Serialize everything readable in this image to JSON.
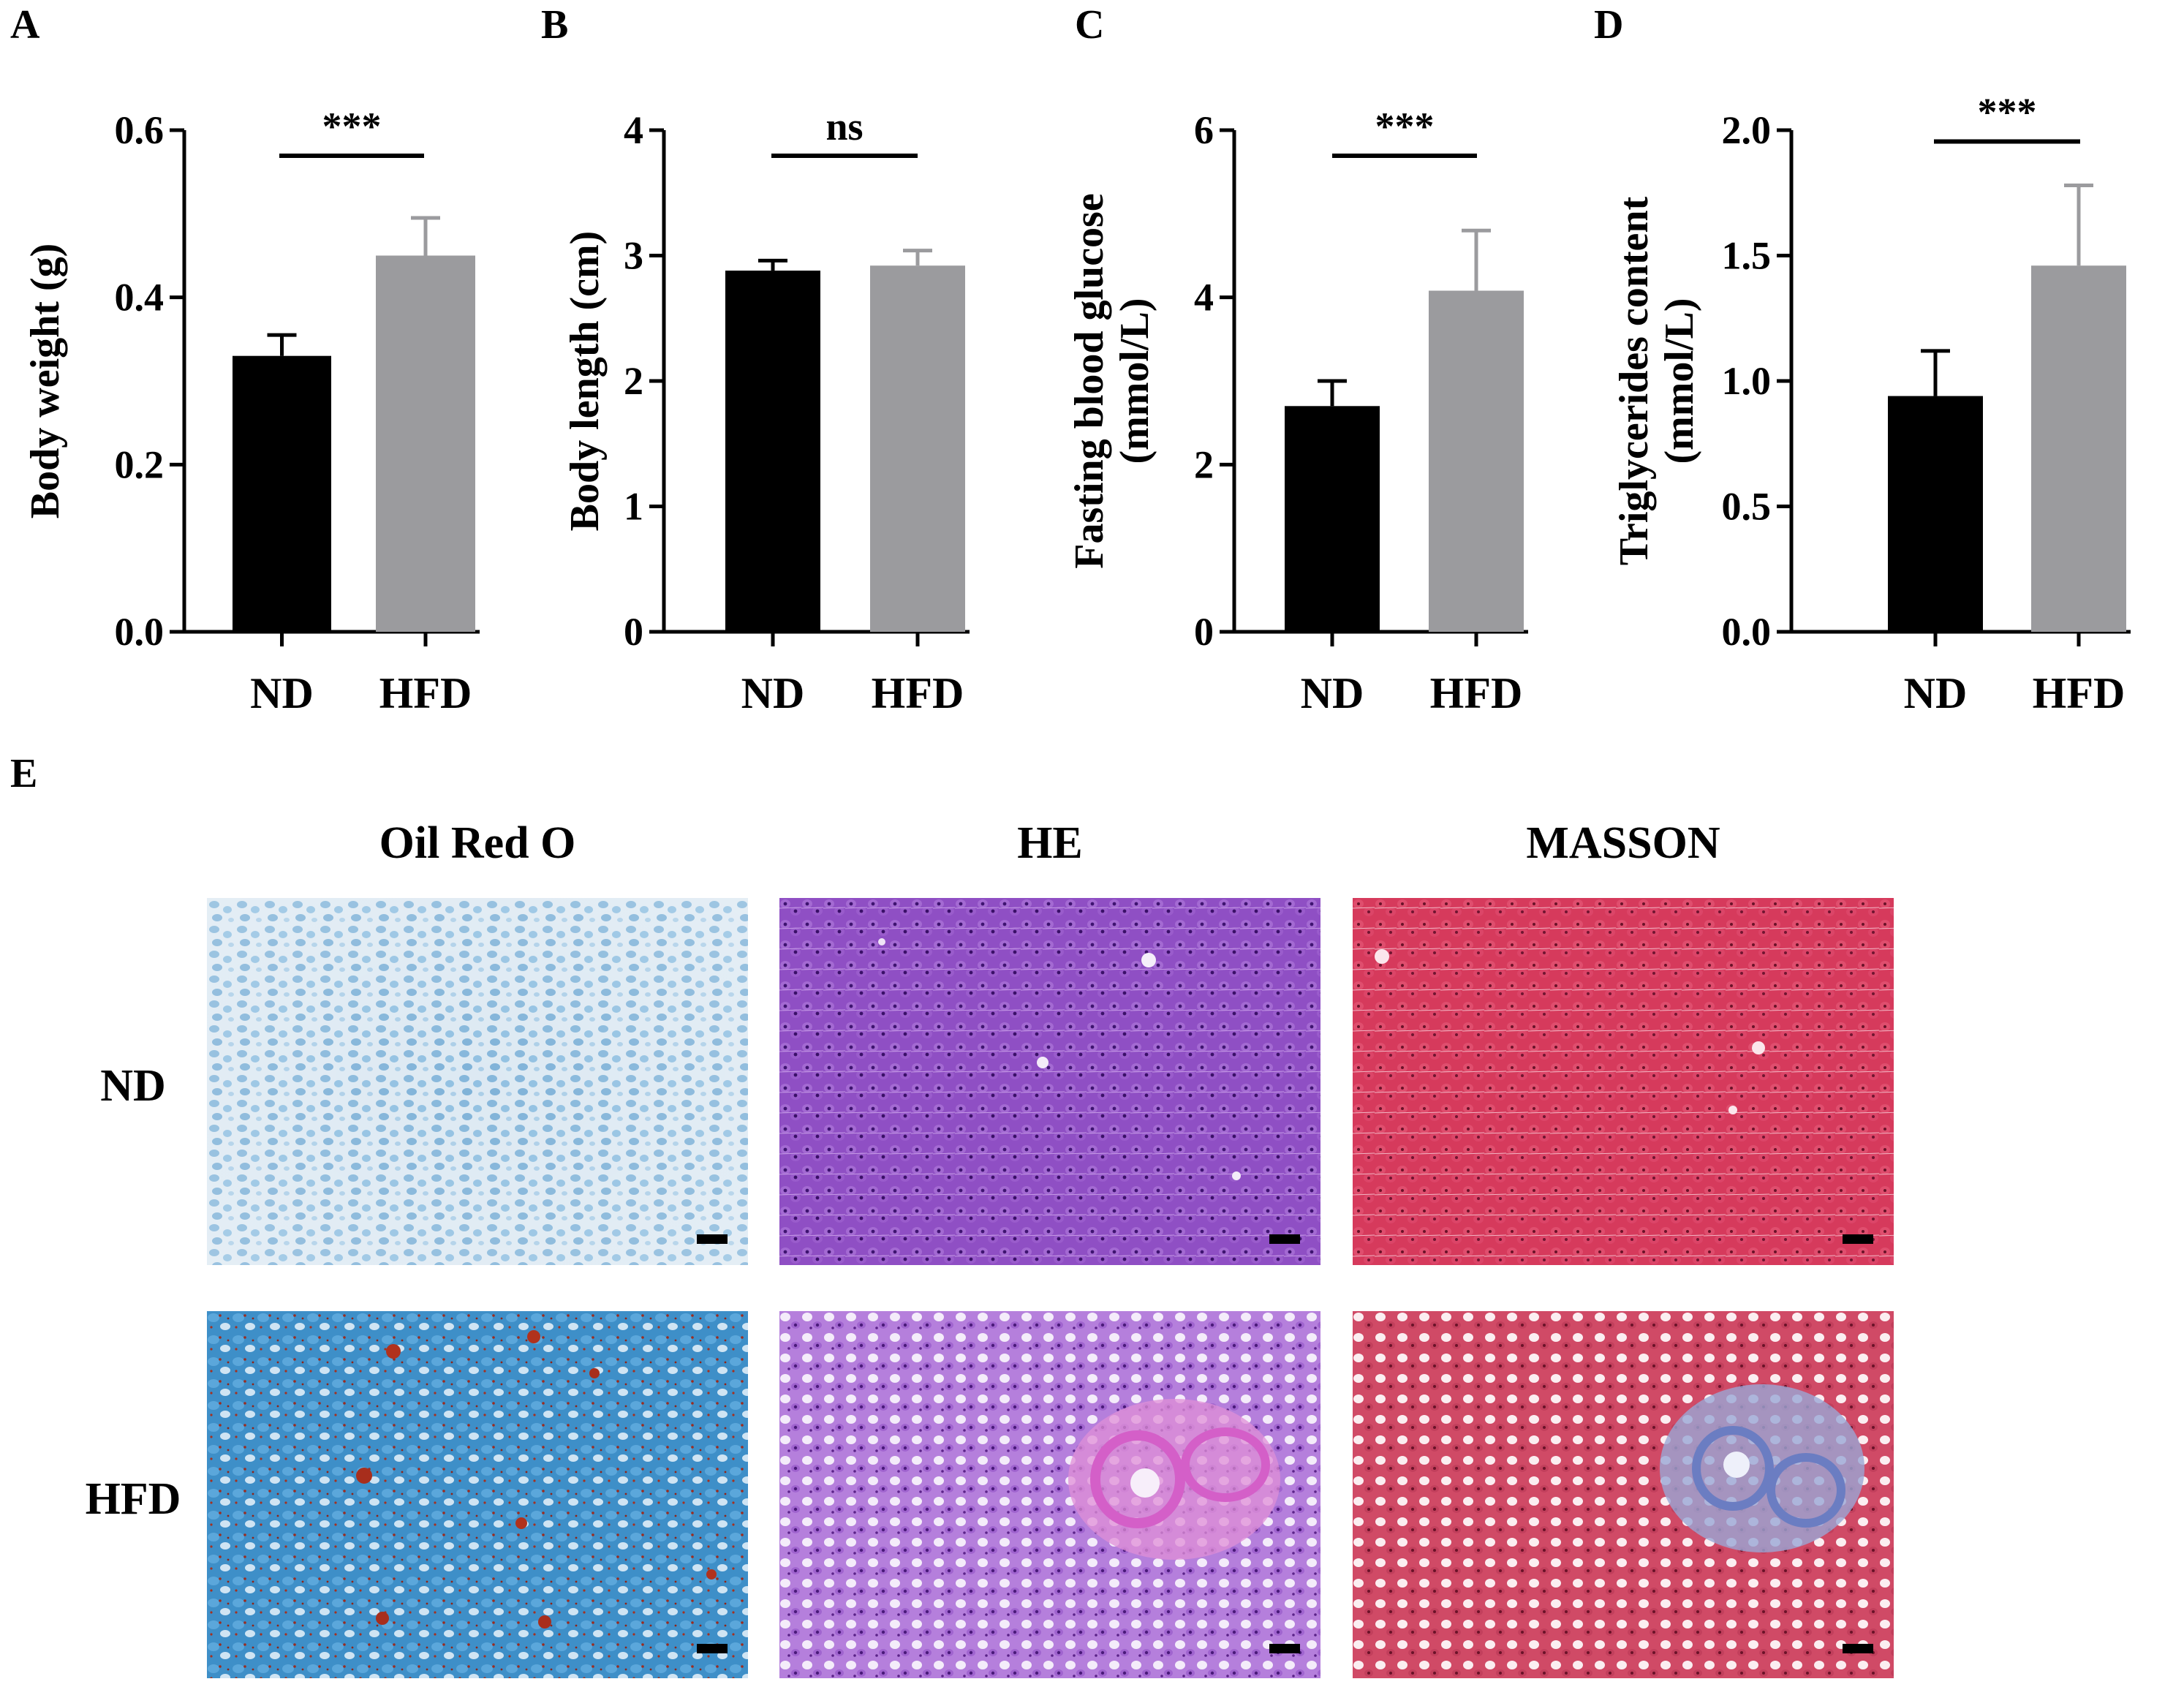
{
  "panels": {
    "A": "A",
    "B": "B",
    "C": "C",
    "D": "D",
    "E": "E"
  },
  "chart_data": [
    {
      "id": "A",
      "type": "bar",
      "categories": [
        "ND",
        "HFD"
      ],
      "values": [
        0.33,
        0.45
      ],
      "errors": [
        0.025,
        0.045
      ],
      "ylabel": [
        "Body weight (g)"
      ],
      "ylim": [
        0,
        0.6
      ],
      "yticks": [
        "0.0",
        "0.2",
        "0.4",
        "0.6"
      ],
      "significance": "***"
    },
    {
      "id": "B",
      "type": "bar",
      "categories": [
        "ND",
        "HFD"
      ],
      "values": [
        2.88,
        2.92
      ],
      "errors": [
        0.08,
        0.12
      ],
      "ylabel": [
        "Body length (cm)"
      ],
      "ylim": [
        0,
        4
      ],
      "yticks": [
        "0",
        "1",
        "2",
        "3",
        "4"
      ],
      "significance": "ns"
    },
    {
      "id": "C",
      "type": "bar",
      "categories": [
        "ND",
        "HFD"
      ],
      "values": [
        2.7,
        4.08
      ],
      "errors": [
        0.3,
        0.72
      ],
      "ylabel": [
        "Fasting blood glucose",
        "(mmol/L)"
      ],
      "ylim": [
        0,
        6
      ],
      "yticks": [
        "0",
        "2",
        "4",
        "6"
      ],
      "significance": "***"
    },
    {
      "id": "D",
      "type": "bar",
      "categories": [
        "ND",
        "HFD"
      ],
      "values": [
        0.94,
        1.46
      ],
      "errors": [
        0.18,
        0.32
      ],
      "ylabel": [
        "Triglycerides content",
        "(mmol/L)"
      ],
      "ylim": [
        0,
        2.0
      ],
      "yticks": [
        "0.0",
        "0.5",
        "1.0",
        "1.5",
        "2.0"
      ],
      "significance": "***"
    }
  ],
  "colors": {
    "ND": "#000000",
    "HFD": "#9b9b9e"
  },
  "histology": {
    "columns": [
      "Oil Red O",
      "HE",
      "MASSON"
    ],
    "rows": [
      "ND",
      "HFD"
    ]
  }
}
